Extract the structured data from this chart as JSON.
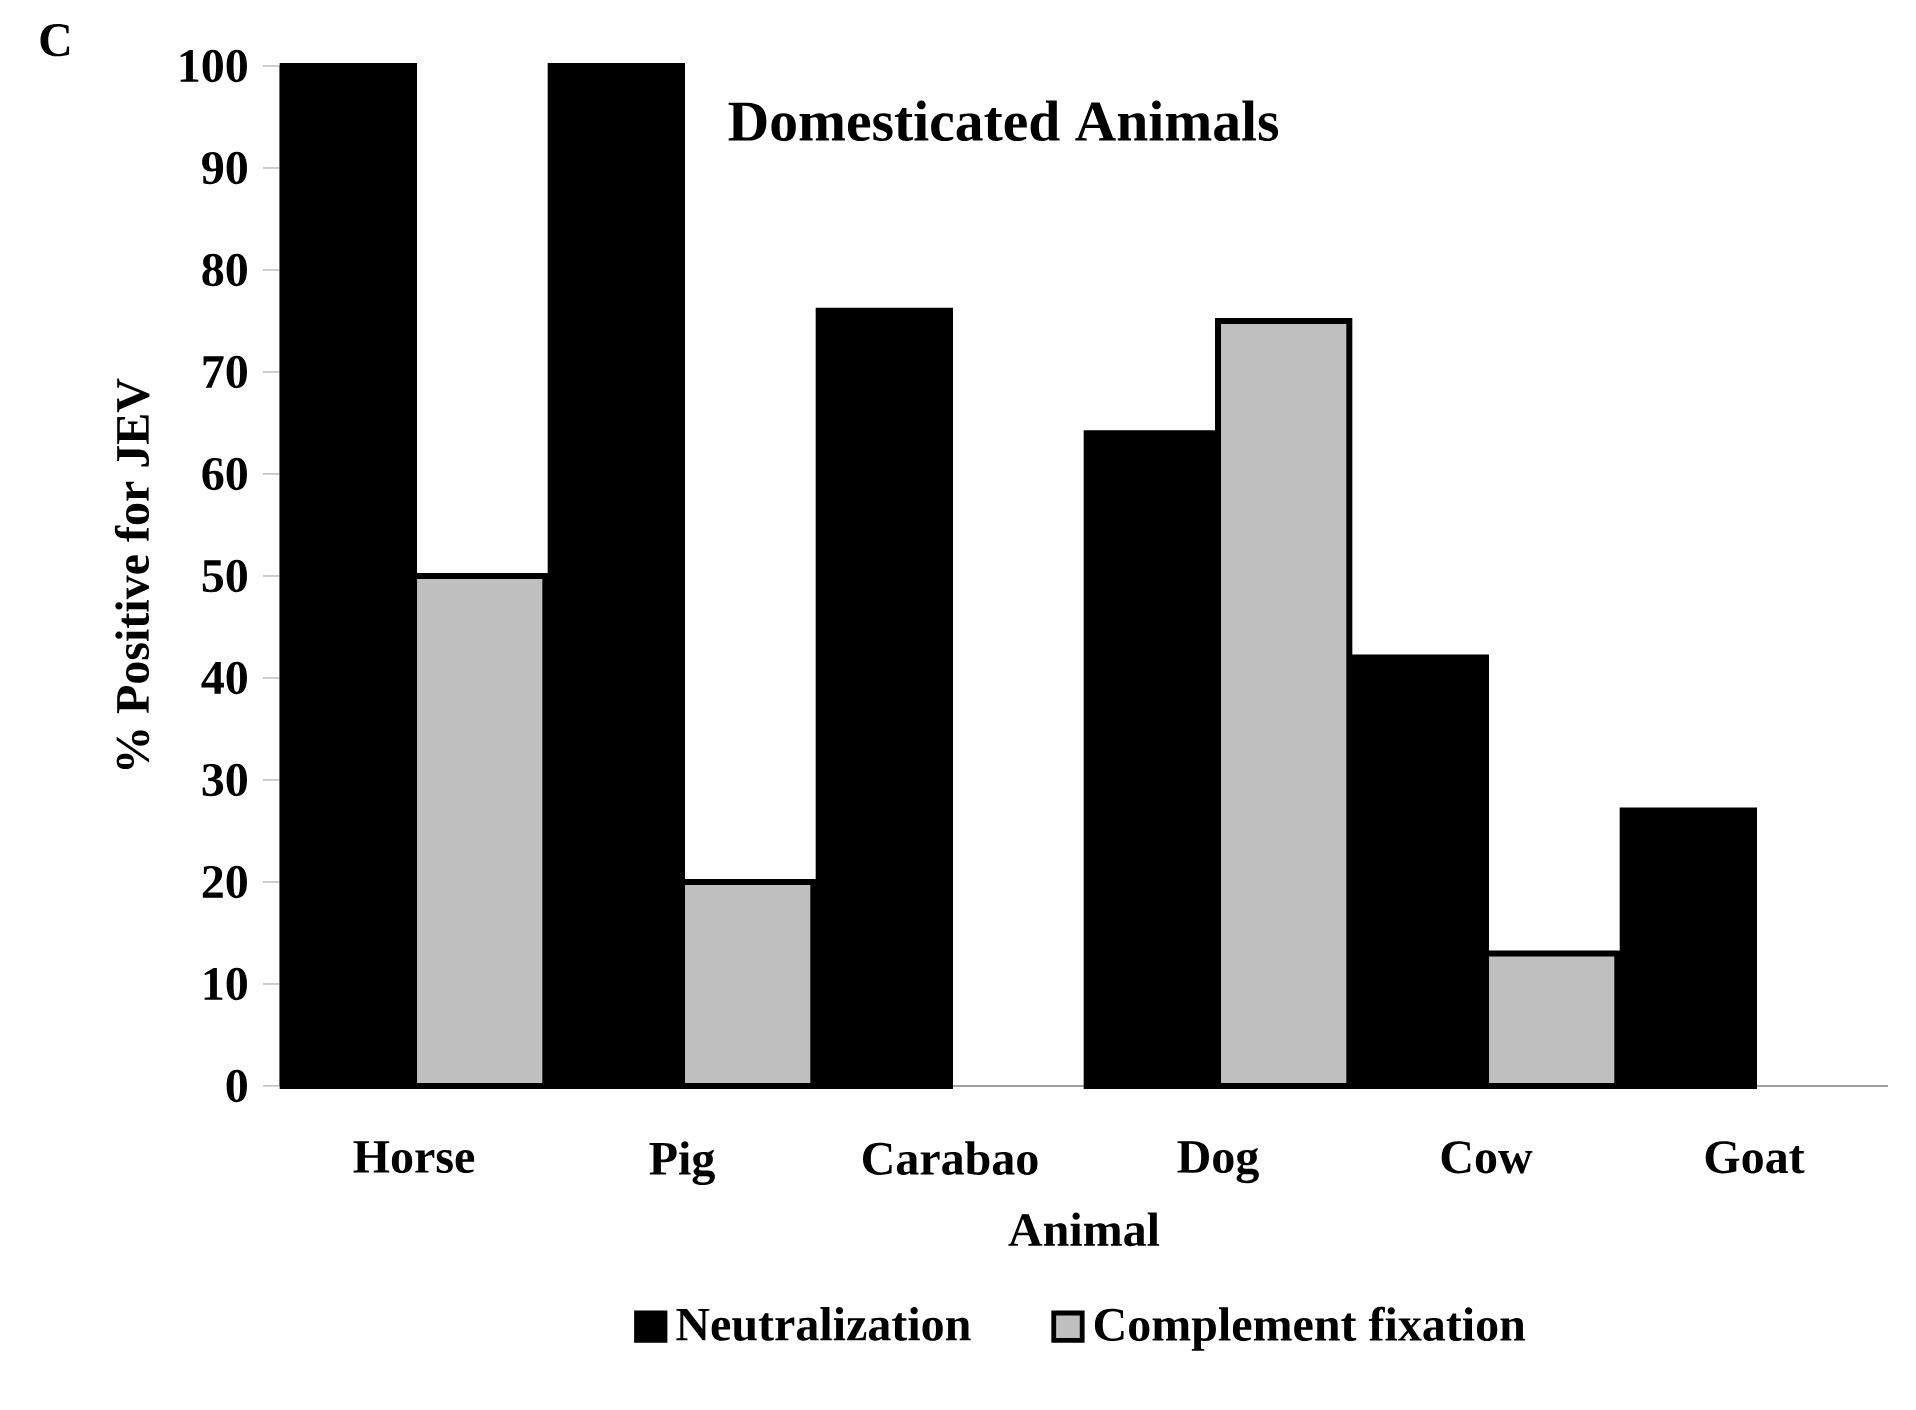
{
  "chart_data": {
    "type": "bar",
    "title": "Domesticated Animals",
    "xlabel": "Animal",
    "ylabel": "% Positive for JEV",
    "categories": [
      "Horse",
      "Pig",
      "Carabao",
      "Dog",
      "Cow",
      "Goat"
    ],
    "series": [
      {
        "name": "Neutralization",
        "color": "#000000",
        "values": [
          100,
          100,
          76,
          64,
          42,
          27
        ]
      },
      {
        "name": "Complement fixation",
        "color": "#bfbfbf",
        "values": [
          50,
          20,
          null,
          75,
          13,
          null
        ]
      }
    ],
    "ylim": [
      0,
      100
    ],
    "yticks": [
      0,
      10,
      20,
      30,
      40,
      50,
      60,
      70,
      80,
      90,
      100
    ],
    "legend": "bottom",
    "annotations": [
      "C"
    ]
  }
}
